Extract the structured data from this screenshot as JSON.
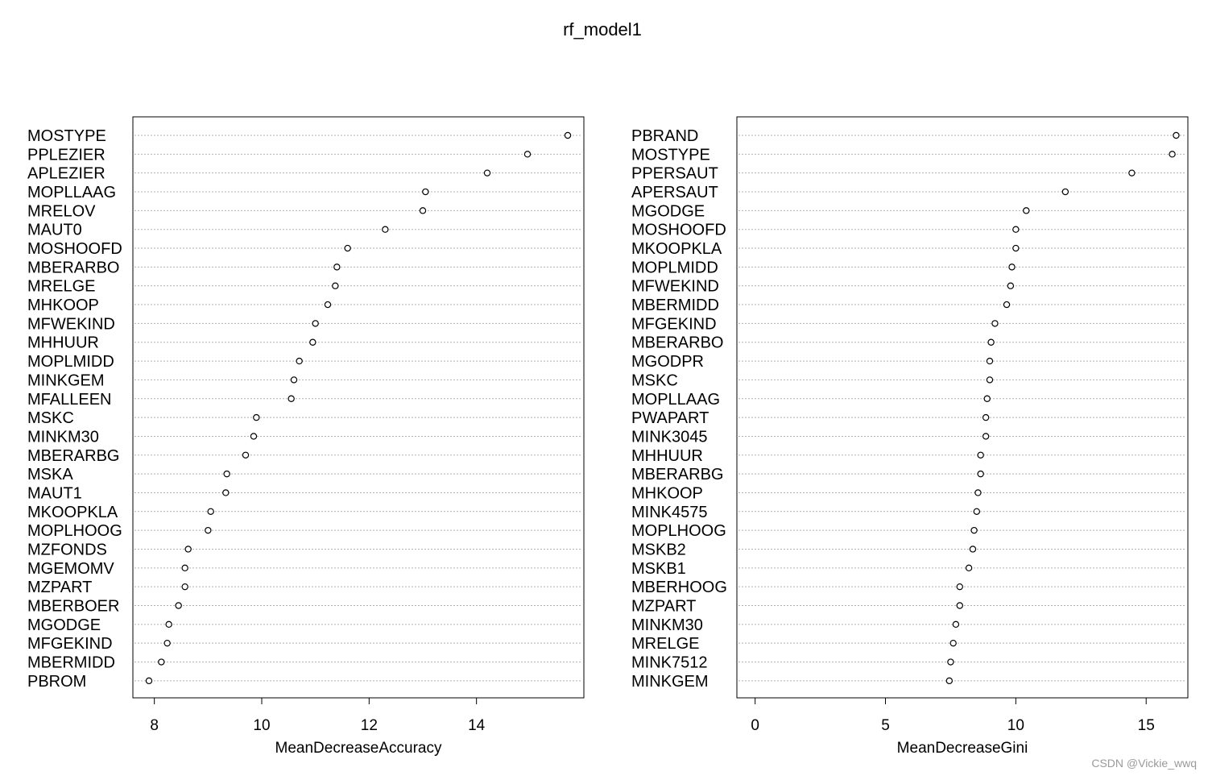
{
  "watermark": "CSDN @Vickie_wwq",
  "chart_data": {
    "type": "dotchart",
    "title": "rf_model1",
    "panels": [
      {
        "xlabel": "MeanDecreaseAccuracy",
        "xlim": [
          7.6,
          16.0
        ],
        "xticks": [
          8,
          10,
          12,
          14
        ],
        "grid": "dotted-horizontal",
        "categories": [
          "MOSTYPE",
          "PPLEZIER",
          "APLEZIER",
          "MOPLLAAG",
          "MRELOV",
          "MAUT0",
          "MOSHOOFD",
          "MBERARBO",
          "MRELGE",
          "MHKOOP",
          "MFWEKIND",
          "MHHUUR",
          "MOPLMIDD",
          "MINKGEM",
          "MFALLEEN",
          "MSKC",
          "MINKM30",
          "MBERARBG",
          "MSKA",
          "MAUT1",
          "MKOOPKLA",
          "MOPLHOOG",
          "MZFONDS",
          "MGEMOMV",
          "MZPART",
          "MBERBOER",
          "MGODGE",
          "MFGEKIND",
          "MBERMIDD",
          "PBROM"
        ],
        "values": [
          15.7,
          14.95,
          14.2,
          13.05,
          13.0,
          12.3,
          11.6,
          11.4,
          11.37,
          11.23,
          11.0,
          10.95,
          10.7,
          10.6,
          10.55,
          9.9,
          9.85,
          9.7,
          9.35,
          9.33,
          9.05,
          9.0,
          8.63,
          8.57,
          8.57,
          8.45,
          8.27,
          8.24,
          8.13,
          7.9
        ]
      },
      {
        "xlabel": "MeanDecreaseGini",
        "xlim": [
          -0.7,
          16.6
        ],
        "xticks": [
          0,
          5,
          10,
          15
        ],
        "grid": "dotted-horizontal",
        "categories": [
          "PBRAND",
          "MOSTYPE",
          "PPERSAUT",
          "APERSAUT",
          "MGODGE",
          "MOSHOOFD",
          "MKOOPKLA",
          "MOPLMIDD",
          "MFWEKIND",
          "MBERMIDD",
          "MFGEKIND",
          "MBERARBO",
          "MGODPR",
          "MSKC",
          "MOPLLAAG",
          "PWAPART",
          "MINK3045",
          "MHHUUR",
          "MBERARBG",
          "MHKOOP",
          "MINK4575",
          "MOPLHOOG",
          "MSKB2",
          "MSKB1",
          "MBERHOOG",
          "MZPART",
          "MINKM30",
          "MRELGE",
          "MINK7512",
          "MINKGEM"
        ],
        "values": [
          16.15,
          16.0,
          14.45,
          11.9,
          10.4,
          10.0,
          10.0,
          9.85,
          9.8,
          9.65,
          9.2,
          9.05,
          9.0,
          9.0,
          8.9,
          8.85,
          8.85,
          8.65,
          8.65,
          8.55,
          8.5,
          8.4,
          8.35,
          8.2,
          7.85,
          7.85,
          7.7,
          7.6,
          7.5,
          7.45
        ]
      }
    ]
  }
}
